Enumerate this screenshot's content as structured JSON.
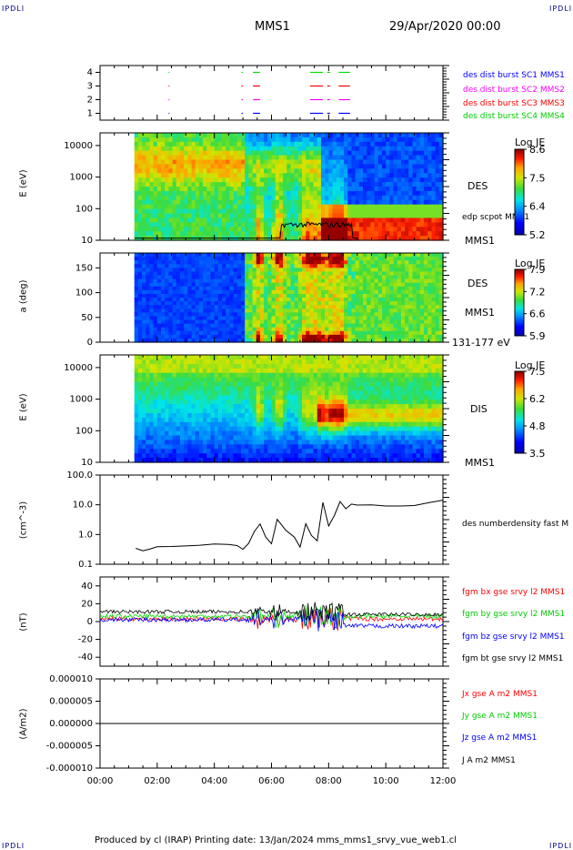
{
  "corners": {
    "tl": "IPDLI",
    "tr": "IPDLI",
    "bl": "IPDLI",
    "br": "IPDLI"
  },
  "header": {
    "spacecraft": "MMS1",
    "datetime": "29/Apr/2020 00:00"
  },
  "footer": {
    "text": "Produced by cl (IRAP)   Printing date: 13/Jan/2024   mms_mms1_srvy_vue_web1.cl"
  },
  "chart_data": [
    {
      "type": "scatter",
      "id": "burst",
      "ylim": [
        0.5,
        4.5
      ],
      "yticks": [
        "1",
        "2",
        "3",
        "4"
      ],
      "legend": [
        {
          "text": "des dist burst SC1 MMS1",
          "color": "#0000ff"
        },
        {
          "text": "des dist burst SC2 MMS2",
          "color": "#ff00ff"
        },
        {
          "text": "des dist burst SC3 MMS3",
          "color": "#ff0000"
        },
        {
          "text": "des dist burst SC4 MMS4",
          "color": "#00ff00"
        }
      ],
      "segments_hours": [
        [
          2.4,
          2.42
        ],
        [
          4.95,
          5.0
        ],
        [
          5.35,
          5.6
        ],
        [
          7.35,
          7.8
        ],
        [
          7.95,
          8.05
        ],
        [
          8.35,
          8.75
        ]
      ]
    },
    {
      "type": "heatmap",
      "id": "des-energy",
      "ylabel": "E (eV)",
      "yticks": [
        "10",
        "100",
        "1000",
        "10000"
      ],
      "label": "DES",
      "sublabel": "MMS1",
      "overlay": "edp scpot MMS1",
      "colorbar": {
        "title": "Log JE",
        "min": "5.2",
        "ticks": [
          "5.2",
          "6.4",
          "7.5",
          "8.6"
        ]
      }
    },
    {
      "type": "heatmap",
      "id": "des-pitch",
      "ylabel": "a (deg)",
      "yticks": [
        "0",
        "50",
        "100",
        "150"
      ],
      "label": "DES",
      "sublabel": "MMS1",
      "energy_range": "131-177 eV",
      "colorbar": {
        "title": "Log JE",
        "ticks": [
          "5.9",
          "6.6",
          "7.2",
          "7.9"
        ]
      }
    },
    {
      "type": "heatmap",
      "id": "dis-energy",
      "ylabel": "E (eV)",
      "yticks": [
        "10",
        "100",
        "1000",
        "10000"
      ],
      "label": "DIS",
      "sublabel": "MMS1",
      "colorbar": {
        "title": "Log JE",
        "ticks": [
          "3.5",
          "4.8",
          "6.2",
          "7.5"
        ]
      }
    },
    {
      "type": "line",
      "id": "density",
      "ylabel": "(cm^-3)",
      "yscale": "log",
      "yticks": [
        "0.1",
        "1.0",
        "10.0",
        "100.0"
      ],
      "series": [
        {
          "name": "des numberdensity fast M",
          "color": "#000000",
          "x_hours": [
            1.25,
            1.5,
            1.75,
            2.0,
            2.5,
            3.0,
            3.5,
            4.0,
            4.5,
            4.8,
            5.0,
            5.2,
            5.4,
            5.6,
            5.8,
            6.0,
            6.2,
            6.5,
            6.8,
            7.0,
            7.2,
            7.4,
            7.6,
            7.8,
            8.0,
            8.2,
            8.4,
            8.6,
            8.8,
            9.0,
            9.5,
            10.0,
            10.5,
            11.0,
            11.5,
            12.0
          ],
          "y": [
            0.33,
            0.3,
            0.35,
            0.4,
            0.42,
            0.4,
            0.45,
            0.45,
            0.5,
            0.4,
            0.35,
            0.5,
            1.2,
            2.5,
            0.8,
            0.45,
            3.0,
            1.5,
            0.8,
            0.4,
            2.5,
            1.0,
            0.6,
            12.0,
            2.0,
            4.0,
            14.0,
            8.0,
            11.0,
            9.0,
            10.0,
            9.0,
            9.5,
            9.0,
            11.0,
            13.0
          ]
        }
      ]
    },
    {
      "type": "line",
      "id": "fgm",
      "ylabel": "(nT)",
      "ylim": [
        -50,
        50
      ],
      "yticks": [
        "-40",
        "-20",
        "0",
        "20",
        "40"
      ],
      "series": [
        {
          "name": "fgm bx gse srvy l2 MMS1",
          "color": "#ff0000"
        },
        {
          "name": "fgm by gse srvy l2 MMS1",
          "color": "#00ff00"
        },
        {
          "name": "fgm bz gse srvy l2 MMS1",
          "color": "#0000ff"
        },
        {
          "name": "fgm bt gse srvy l2 MMS1",
          "color": "#000000"
        }
      ]
    },
    {
      "type": "line",
      "id": "current",
      "ylabel": "(A/m2)",
      "ylim": [
        -1e-05,
        1e-05
      ],
      "yticks": [
        "-0.000010",
        "-0.000005",
        "0.000000",
        "0.000005",
        "0.000010"
      ],
      "series": [
        {
          "name": "Jx gse A m2 MMS1",
          "color": "#ff0000"
        },
        {
          "name": "Jy gse A m2 MMS1",
          "color": "#00ff00"
        },
        {
          "name": "Jz gse A m2 MMS1",
          "color": "#0000ff"
        },
        {
          "name": "J A m2 MMS1",
          "color": "#000000"
        }
      ]
    }
  ],
  "xaxis": {
    "ticks": [
      "00:00",
      "02:00",
      "04:00",
      "06:00",
      "08:00",
      "10:00",
      "12:00"
    ],
    "range_hours": [
      0,
      12
    ]
  }
}
